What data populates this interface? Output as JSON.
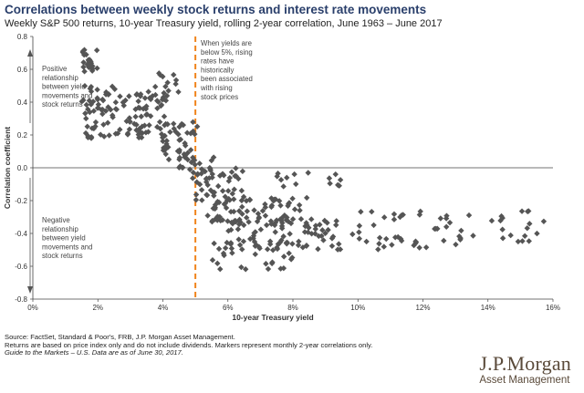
{
  "header": {
    "title": "Correlations between weekly stock returns and interest rate movements",
    "subtitle": "Weekly S&P 500 returns, 10-year Treasury yield, rolling 2-year correlation, June 1963 – June 2017"
  },
  "chart_data": {
    "type": "scatter",
    "xlabel": "10-year Treasury yield",
    "ylabel": "Correlation coefficient",
    "xlim": [
      0,
      16
    ],
    "ylim": [
      -0.8,
      0.8
    ],
    "x_ticks": [
      "0%",
      "2%",
      "4%",
      "6%",
      "8%",
      "10%",
      "12%",
      "14%",
      "16%"
    ],
    "y_ticks": [
      "-0.8",
      "-0.6",
      "-0.4",
      "-0.2",
      "0.0",
      "0.2",
      "0.4",
      "0.6",
      "0.8"
    ],
    "grid": false,
    "marker": "diamond",
    "marker_color": "#555555",
    "threshold_line": {
      "x": 5,
      "color": "#f0841c",
      "style": "dashed"
    },
    "annotations": {
      "top_left": "Positive relationship between yield movements and stock returns",
      "bottom_left": "Negative relationship between yield movements and stock returns",
      "threshold": "When yields are below 5%, rising rates have historically been associated with rising stock prices"
    },
    "clusters": [
      {
        "x": [
          1.5,
          2.0
        ],
        "y": [
          0.58,
          0.72
        ],
        "n": 22
      },
      {
        "x": [
          1.5,
          2.6
        ],
        "y": [
          0.35,
          0.5
        ],
        "n": 26
      },
      {
        "x": [
          1.6,
          2.8
        ],
        "y": [
          0.18,
          0.38
        ],
        "n": 30
      },
      {
        "x": [
          2.5,
          4.0
        ],
        "y": [
          0.3,
          0.45
        ],
        "n": 30
      },
      {
        "x": [
          2.8,
          4.2
        ],
        "y": [
          0.18,
          0.32
        ],
        "n": 34
      },
      {
        "x": [
          3.5,
          4.6
        ],
        "y": [
          0.4,
          0.58
        ],
        "n": 20
      },
      {
        "x": [
          4.0,
          5.1
        ],
        "y": [
          0.05,
          0.28
        ],
        "n": 38
      },
      {
        "x": [
          4.5,
          5.6
        ],
        "y": [
          -0.08,
          0.1
        ],
        "n": 28
      },
      {
        "x": [
          5.0,
          6.5
        ],
        "y": [
          -0.2,
          0.0
        ],
        "n": 40
      },
      {
        "x": [
          5.3,
          8.5
        ],
        "y": [
          -0.35,
          -0.18
        ],
        "n": 70
      },
      {
        "x": [
          6.0,
          9.5
        ],
        "y": [
          -0.5,
          -0.3
        ],
        "n": 80
      },
      {
        "x": [
          5.5,
          8.0
        ],
        "y": [
          -0.62,
          -0.45
        ],
        "n": 32
      },
      {
        "x": [
          7.5,
          9.5
        ],
        "y": [
          -0.12,
          -0.02
        ],
        "n": 14
      },
      {
        "x": [
          9.8,
          11.5
        ],
        "y": [
          -0.5,
          -0.22
        ],
        "n": 24
      },
      {
        "x": [
          11.6,
          13.2
        ],
        "y": [
          -0.5,
          -0.25
        ],
        "n": 22
      },
      {
        "x": [
          13.2,
          15.8
        ],
        "y": [
          -0.45,
          -0.25
        ],
        "n": 20
      }
    ]
  },
  "footer": {
    "source": "Source: FactSet, Standard & Poor's, FRB, J.P. Morgan Asset Management.",
    "note": "Returns are based on price index only and do not include dividends. Markers represent monthly 2-year correlations only.",
    "guide": "Guide to the Markets – U.S. Data are as of June 30, 2017."
  },
  "logo": {
    "brand": "J.P.Morgan",
    "unit": "Asset Management"
  }
}
